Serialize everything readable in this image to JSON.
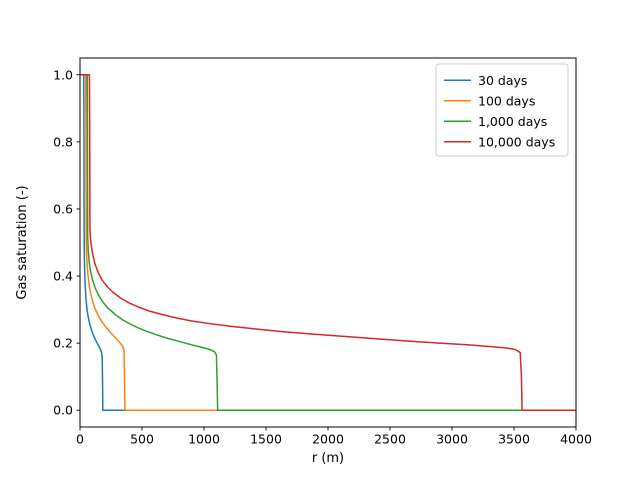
{
  "figure": {
    "background": "#ffffff"
  },
  "chart_data": {
    "type": "line",
    "title": "",
    "xlabel": "r (m)",
    "ylabel": "Gas saturation (-)",
    "xlim": [
      0,
      4000
    ],
    "ylim": [
      -0.05,
      1.05
    ],
    "xticks": [
      0,
      500,
      1000,
      1500,
      2000,
      2500,
      3000,
      3500,
      4000
    ],
    "yticks": [
      0.0,
      0.2,
      0.4,
      0.6,
      0.8,
      1.0
    ],
    "ytick_labels": [
      "0.0",
      "0.2",
      "0.4",
      "0.6",
      "0.8",
      "1.0"
    ],
    "grid": false,
    "legend": {
      "position": "upper right",
      "entries": [
        "30 days",
        "100 days",
        "1,000 days",
        "10,000 days"
      ]
    },
    "series": [
      {
        "name": "30 days",
        "color": "#1f77b4",
        "points": [
          [
            3,
            1.0
          ],
          [
            30,
            1.0
          ],
          [
            32,
            0.85
          ],
          [
            33,
            0.55
          ],
          [
            35,
            0.46
          ],
          [
            38,
            0.41
          ],
          [
            42,
            0.37
          ],
          [
            48,
            0.335
          ],
          [
            55,
            0.305
          ],
          [
            65,
            0.28
          ],
          [
            78,
            0.258
          ],
          [
            92,
            0.24
          ],
          [
            108,
            0.224
          ],
          [
            125,
            0.21
          ],
          [
            140,
            0.199
          ],
          [
            155,
            0.189
          ],
          [
            166,
            0.181
          ],
          [
            174,
            0.172
          ],
          [
            179,
            0.16
          ],
          [
            182,
            0.08
          ],
          [
            184,
            0.0
          ],
          [
            4000,
            0.0
          ]
        ]
      },
      {
        "name": "100 days",
        "color": "#ff7f0e",
        "points": [
          [
            3,
            1.0
          ],
          [
            46,
            1.0
          ],
          [
            48,
            0.85
          ],
          [
            50,
            0.52
          ],
          [
            53,
            0.47
          ],
          [
            58,
            0.43
          ],
          [
            65,
            0.4
          ],
          [
            75,
            0.37
          ],
          [
            88,
            0.345
          ],
          [
            105,
            0.32
          ],
          [
            125,
            0.3
          ],
          [
            150,
            0.28
          ],
          [
            180,
            0.262
          ],
          [
            215,
            0.245
          ],
          [
            255,
            0.228
          ],
          [
            295,
            0.212
          ],
          [
            325,
            0.2
          ],
          [
            345,
            0.19
          ],
          [
            355,
            0.178
          ],
          [
            359,
            0.1
          ],
          [
            362,
            0.0
          ],
          [
            4000,
            0.0
          ]
        ]
      },
      {
        "name": "1,000 days",
        "color": "#2ca02c",
        "points": [
          [
            3,
            1.0
          ],
          [
            58,
            1.0
          ],
          [
            60,
            0.85
          ],
          [
            62,
            0.52
          ],
          [
            66,
            0.48
          ],
          [
            73,
            0.445
          ],
          [
            84,
            0.415
          ],
          [
            100,
            0.39
          ],
          [
            122,
            0.365
          ],
          [
            150,
            0.343
          ],
          [
            185,
            0.322
          ],
          [
            230,
            0.303
          ],
          [
            285,
            0.285
          ],
          [
            350,
            0.268
          ],
          [
            425,
            0.253
          ],
          [
            510,
            0.239
          ],
          [
            600,
            0.227
          ],
          [
            700,
            0.215
          ],
          [
            800,
            0.205
          ],
          [
            900,
            0.195
          ],
          [
            990,
            0.187
          ],
          [
            1055,
            0.18
          ],
          [
            1085,
            0.174
          ],
          [
            1100,
            0.165
          ],
          [
            1106,
            0.08
          ],
          [
            1110,
            0.0
          ],
          [
            4000,
            0.0
          ]
        ]
      },
      {
        "name": "10,000 days",
        "color": "#d62728",
        "points": [
          [
            3,
            1.0
          ],
          [
            76,
            1.0
          ],
          [
            78,
            0.85
          ],
          [
            80,
            0.54
          ],
          [
            85,
            0.51
          ],
          [
            93,
            0.485
          ],
          [
            105,
            0.46
          ],
          [
            122,
            0.435
          ],
          [
            145,
            0.412
          ],
          [
            175,
            0.39
          ],
          [
            215,
            0.37
          ],
          [
            265,
            0.352
          ],
          [
            325,
            0.335
          ],
          [
            395,
            0.32
          ],
          [
            475,
            0.307
          ],
          [
            565,
            0.295
          ],
          [
            665,
            0.285
          ],
          [
            780,
            0.275
          ],
          [
            900,
            0.266
          ],
          [
            1050,
            0.258
          ],
          [
            1220,
            0.25
          ],
          [
            1420,
            0.242
          ],
          [
            1640,
            0.234
          ],
          [
            1880,
            0.227
          ],
          [
            2130,
            0.22
          ],
          [
            2390,
            0.213
          ],
          [
            2650,
            0.206
          ],
          [
            2900,
            0.2
          ],
          [
            3120,
            0.195
          ],
          [
            3300,
            0.19
          ],
          [
            3430,
            0.186
          ],
          [
            3510,
            0.181
          ],
          [
            3550,
            0.172
          ],
          [
            3560,
            0.1
          ],
          [
            3565,
            0.0
          ],
          [
            4000,
            0.0
          ]
        ]
      }
    ]
  }
}
